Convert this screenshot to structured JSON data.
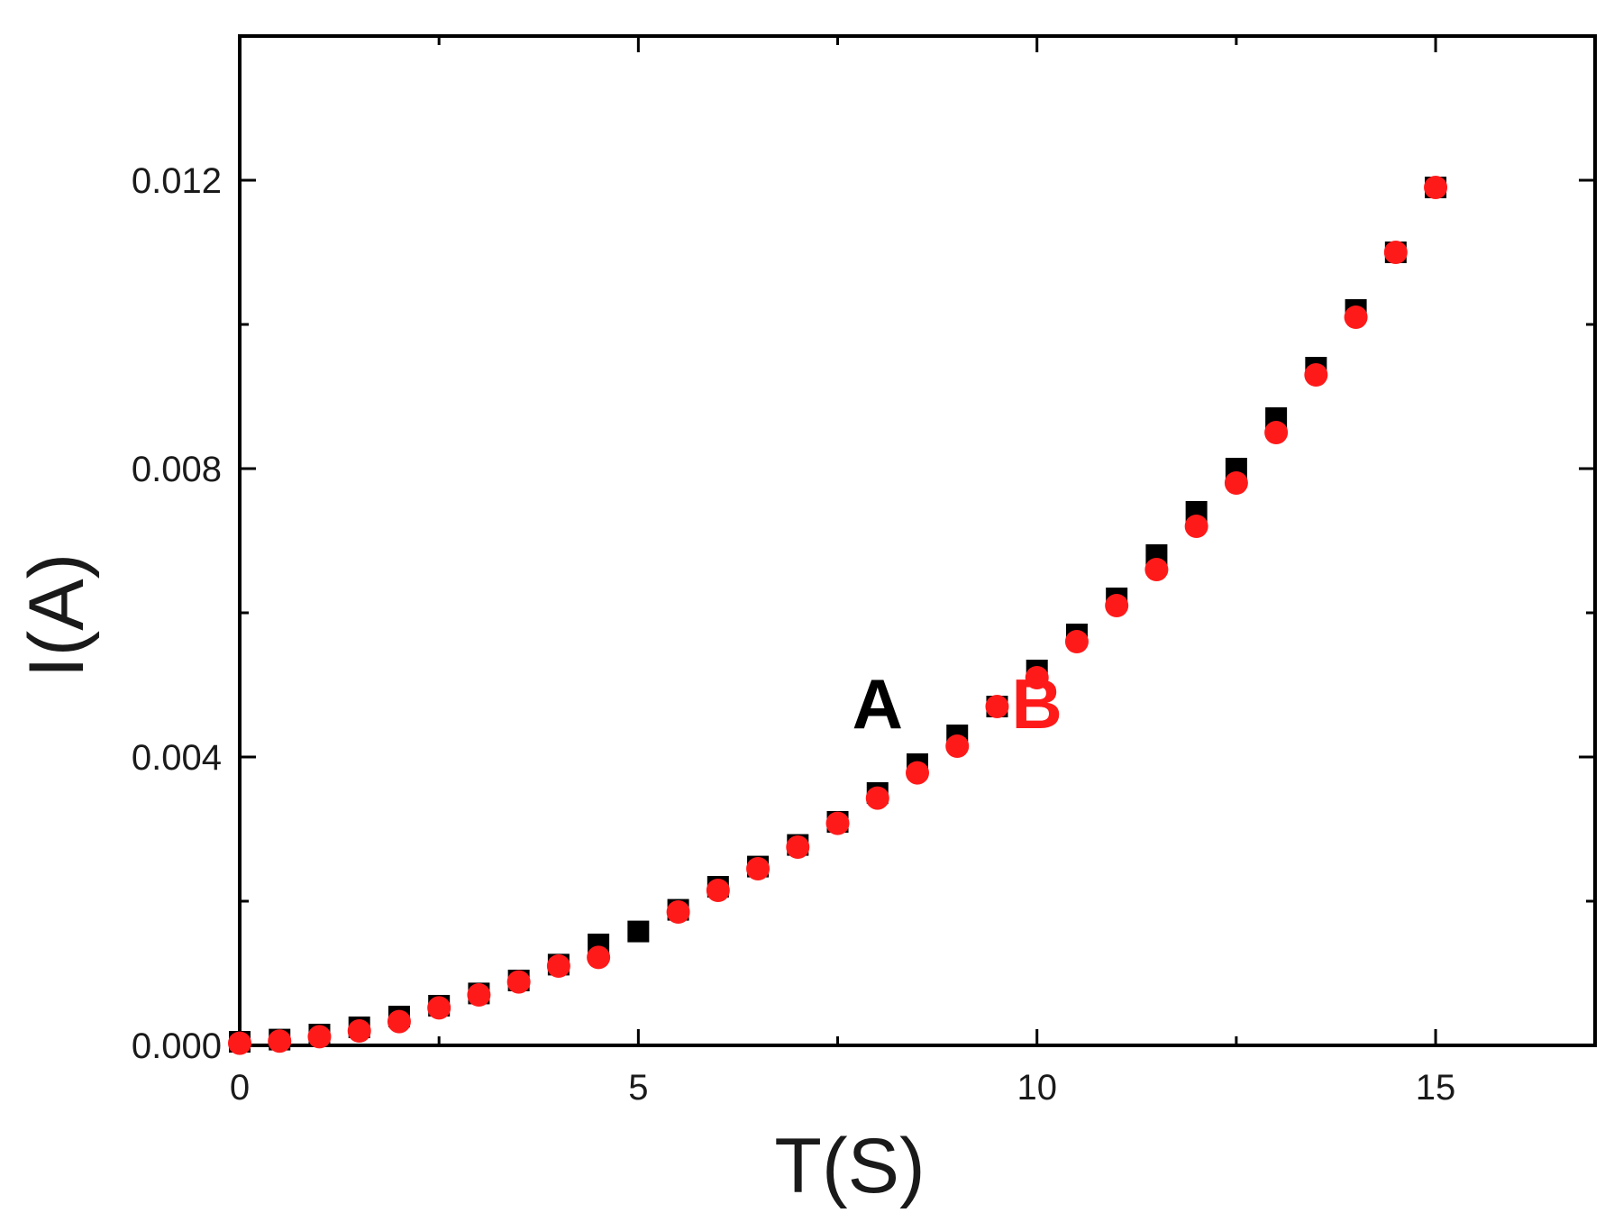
{
  "chart_data": {
    "type": "scatter",
    "title": "",
    "xlabel": "T(S)",
    "ylabel": "I(A)",
    "xlim": [
      0,
      17
    ],
    "ylim": [
      0,
      0.014
    ],
    "x_ticks": [
      0,
      5,
      10,
      15
    ],
    "x_tick_labels": [
      "0",
      "5",
      "10",
      "15"
    ],
    "y_ticks": [
      0,
      0.004,
      0.008,
      0.012
    ],
    "y_tick_labels": [
      "0.000",
      "0.004",
      "0.008",
      "0.012"
    ],
    "grid": false,
    "series": [
      {
        "marker": "square",
        "color": "#000000",
        "x": [
          0,
          0.5,
          1,
          1.5,
          2,
          2.5,
          3,
          3.5,
          4,
          4.5,
          5,
          5.5,
          6,
          6.5,
          7,
          7.5,
          8,
          8.5,
          9,
          9.5,
          10,
          10.5,
          11,
          11.5,
          12,
          12.5,
          13,
          13.5,
          14,
          14.5,
          15
        ],
        "y": [
          5e-05,
          8e-05,
          0.00015,
          0.00025,
          0.0004,
          0.00055,
          0.00072,
          0.0009,
          0.00112,
          0.0014,
          0.00158,
          0.00188,
          0.0022,
          0.00248,
          0.00278,
          0.0031,
          0.0035,
          0.0039,
          0.0043,
          0.0047,
          0.0052,
          0.0057,
          0.0062,
          0.0068,
          0.0074,
          0.008,
          0.0087,
          0.0094,
          0.0102,
          0.011,
          0.0119
        ]
      },
      {
        "marker": "circle",
        "color": "#ff1a1a",
        "x": [
          0,
          0.5,
          1,
          1.5,
          2,
          2.5,
          3,
          3.5,
          4,
          4.5,
          5.5,
          6,
          6.5,
          7,
          7.5,
          8,
          8.5,
          9,
          9.5,
          10,
          10.5,
          11,
          11.5,
          12,
          12.5,
          13,
          13.5,
          14,
          14.5,
          15
        ],
        "y": [
          3e-05,
          6e-05,
          0.00012,
          0.0002,
          0.00033,
          0.00052,
          0.0007,
          0.00088,
          0.0011,
          0.00122,
          0.00185,
          0.00215,
          0.00245,
          0.00275,
          0.00308,
          0.00343,
          0.00378,
          0.00415,
          0.0047,
          0.0051,
          0.0056,
          0.0061,
          0.0066,
          0.0072,
          0.0078,
          0.0085,
          0.0093,
          0.0101,
          0.011,
          0.0119
        ]
      }
    ],
    "annotations": [
      {
        "text": "A",
        "x": 8.0,
        "y": 0.0044,
        "color": "#000000"
      },
      {
        "text": "B",
        "x": 10.0,
        "y": 0.0044,
        "color": "#ff1a1a"
      }
    ]
  }
}
